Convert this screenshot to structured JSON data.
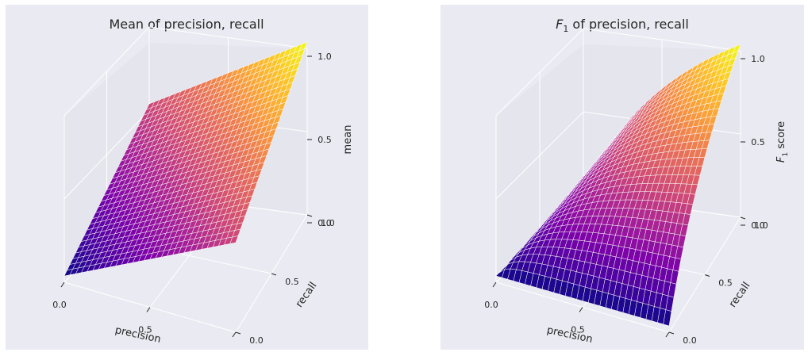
{
  "chart_data": [
    {
      "type": "surface3d",
      "title": "Mean of precision, recall",
      "xlabel": "precision",
      "ylabel": "recall",
      "zlabel": "mean",
      "function": "mean",
      "xlim": [
        0,
        1
      ],
      "ylim": [
        0,
        1
      ],
      "zlim": [
        0,
        1
      ],
      "x_ticks": [
        "0.0",
        "0.5",
        "1.0"
      ],
      "y_ticks": [
        "0.0",
        "0.5",
        "1.0"
      ],
      "z_ticks": [
        "0.0",
        "0.5",
        "1.0"
      ],
      "colormap": "plasma",
      "grid": true,
      "sample_values": [
        {
          "precision": 0.0,
          "recall": 0.0,
          "value": 0.0
        },
        {
          "precision": 1.0,
          "recall": 0.0,
          "value": 0.5
        },
        {
          "precision": 0.0,
          "recall": 1.0,
          "value": 0.5
        },
        {
          "precision": 0.5,
          "recall": 0.5,
          "value": 0.5
        },
        {
          "precision": 1.0,
          "recall": 1.0,
          "value": 1.0
        }
      ]
    },
    {
      "type": "surface3d",
      "title_main": "F",
      "title_sub": "1",
      "title_rest": " of precision, recall",
      "xlabel": "precision",
      "ylabel": "recall",
      "zlabel_main": "F",
      "zlabel_sub": "1",
      "zlabel_rest": " score",
      "function": "f1",
      "xlim": [
        0,
        1
      ],
      "ylim": [
        0,
        1
      ],
      "zlim": [
        0,
        1
      ],
      "x_ticks": [
        "0.0",
        "0.5",
        "1.0"
      ],
      "y_ticks": [
        "0.0",
        "0.5",
        "1.0"
      ],
      "z_ticks": [
        "0.0",
        "0.5",
        "1.0"
      ],
      "colormap": "plasma",
      "grid": true,
      "sample_values": [
        {
          "precision": 0.0,
          "recall": 0.0,
          "value": 0.0
        },
        {
          "precision": 1.0,
          "recall": 0.0,
          "value": 0.0
        },
        {
          "precision": 0.0,
          "recall": 1.0,
          "value": 0.0
        },
        {
          "precision": 0.5,
          "recall": 0.5,
          "value": 0.5
        },
        {
          "precision": 1.0,
          "recall": 1.0,
          "value": 1.0
        }
      ]
    }
  ]
}
